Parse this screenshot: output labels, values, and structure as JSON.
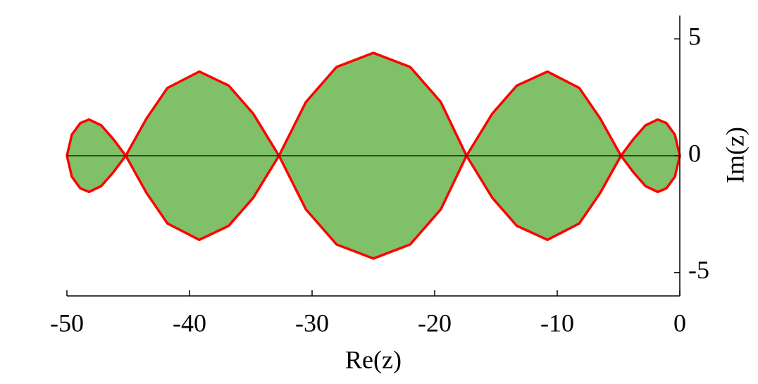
{
  "chart_data": {
    "type": "region",
    "x_label": "Re(z)",
    "y_label": "Im(z)",
    "xlim": [
      -50,
      0
    ],
    "ylim": [
      -6,
      6
    ],
    "xticks": [
      -50,
      -40,
      -30,
      -20,
      -10,
      0
    ],
    "yticks": [
      -5,
      0,
      5
    ],
    "hline": 0,
    "fill": "#80c068",
    "color": "#ff0000",
    "x": [
      -50,
      -49.6,
      -48.9,
      -48.2,
      -47.2,
      -46.2,
      -45.2,
      -43.5,
      -41.8,
      -39.2,
      -36.8,
      -34.8,
      -32.7,
      -30.5,
      -28,
      -25,
      -22,
      -19.5,
      -17.4,
      -15.3,
      -13.3,
      -10.8,
      -8.2,
      -6.5,
      -4.8,
      -3.8,
      -2.8,
      -1.8,
      -1.1,
      -0.4,
      0,
      -0.4,
      -1.1,
      -1.8,
      -2.8,
      -3.8,
      -4.8,
      -6.5,
      -8.2,
      -10.8,
      -13.3,
      -15.3,
      -17.4,
      -19.5,
      -22,
      -25,
      -28,
      -30.5,
      -32.7,
      -34.8,
      -36.8,
      -39.2,
      -41.8,
      -43.5,
      -45.2,
      -46.2,
      -47.2,
      -48.2,
      -48.9,
      -49.6
    ],
    "y": [
      0,
      0.9,
      1.4,
      1.55,
      1.3,
      0.7,
      0,
      1.6,
      2.9,
      3.6,
      3.0,
      1.8,
      0,
      2.3,
      3.8,
      4.4,
      3.8,
      2.3,
      0,
      1.8,
      3.0,
      3.6,
      2.9,
      1.6,
      0,
      0.7,
      1.3,
      1.55,
      1.4,
      0.9,
      0,
      -0.9,
      -1.4,
      -1.55,
      -1.3,
      -0.7,
      0,
      -1.6,
      -2.9,
      -3.6,
      -3.0,
      -1.8,
      0,
      -2.3,
      -3.8,
      -4.4,
      -3.8,
      -2.3,
      0,
      -1.8,
      -3.0,
      -3.6,
      -2.9,
      -1.6,
      0,
      -0.7,
      -1.3,
      -1.55,
      -1.4,
      -0.9
    ]
  }
}
